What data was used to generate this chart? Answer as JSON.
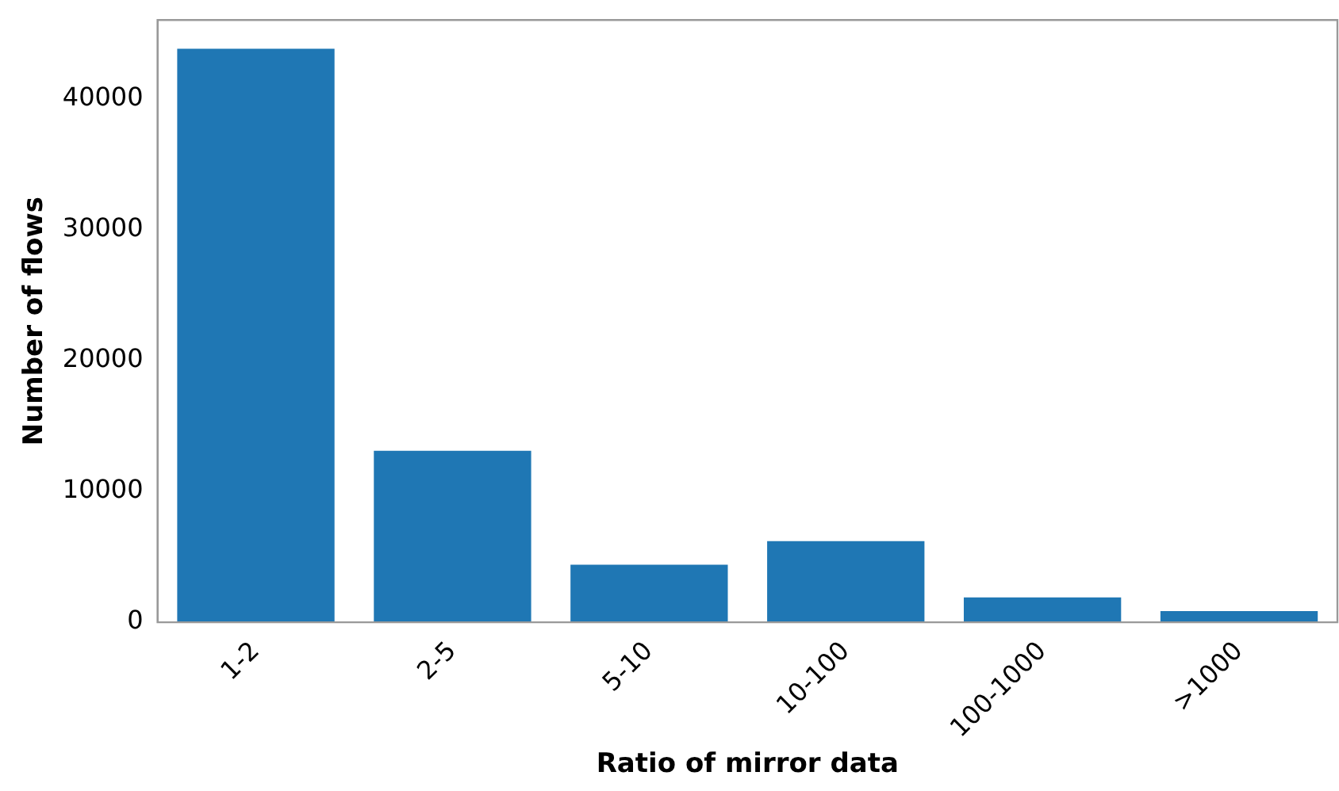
{
  "chart_data": {
    "type": "bar",
    "xlabel": "Ratio of mirror data",
    "ylabel": "Number of flows",
    "categories": [
      "1-2",
      "2-5",
      "5-10",
      "10-100",
      "100-1000",
      ">1000"
    ],
    "values": [
      43800,
      13100,
      4400,
      6200,
      1900,
      850
    ],
    "color": "#1f77b4",
    "ylim": [
      0,
      46000
    ],
    "yticks": [
      0,
      10000,
      20000,
      30000,
      40000
    ],
    "grid": false,
    "legend": false
  }
}
